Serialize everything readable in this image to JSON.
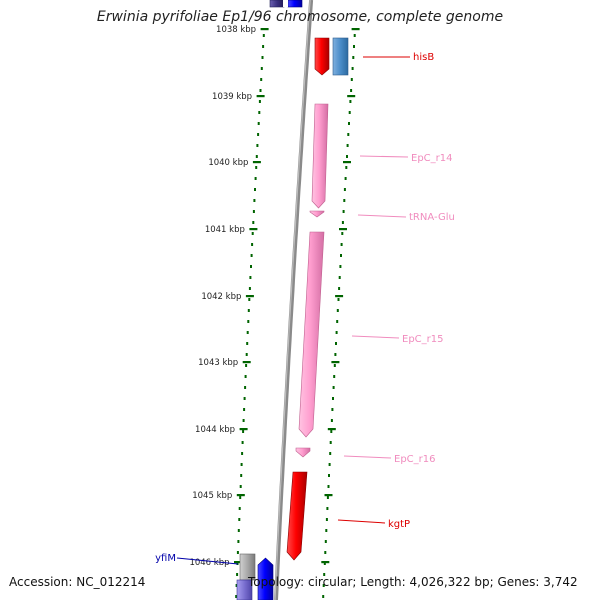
{
  "title": "Erwinia pyrifoliae Ep1/96 chromosome, complete genome",
  "footer": {
    "accession": "Accession: NC_012214",
    "summary": "Topology: circular; Length: 4,026,322 bp; Genes: 3,742"
  },
  "ruler": {
    "unit": "kbp",
    "ticks": [
      "1038 kbp",
      "1039 kbp",
      "1040 kbp",
      "1041 kbp",
      "1042 kbp",
      "1043 kbp",
      "1044 kbp",
      "1045 kbp",
      "1046 kbp"
    ]
  },
  "features": [
    {
      "name": "hisB",
      "color": "#dd0000",
      "strand": "+"
    },
    {
      "name": "EpC_r14",
      "color": "#f08cbe",
      "strand": "+"
    },
    {
      "name": "tRNA-Glu",
      "color": "#f08cbe",
      "strand": "+"
    },
    {
      "name": "EpC_r15",
      "color": "#f08cbe",
      "strand": "+"
    },
    {
      "name": "EpC_r16",
      "color": "#f08cbe",
      "strand": "+"
    },
    {
      "name": "kgtP",
      "color": "#dd0000",
      "strand": "+"
    },
    {
      "name": "yfiM",
      "color": "#0000aa",
      "strand": "-"
    }
  ],
  "colors": {
    "tick": "#006400",
    "backbone": "#888888",
    "cds_red": "#ff0000",
    "rna_pink": "#ff9ecf",
    "cds_blue": "#0000ff",
    "steel_blue": "#4a8cc8",
    "grey_block": "#a8a8a8",
    "purple_block": "#7a6fd0"
  }
}
